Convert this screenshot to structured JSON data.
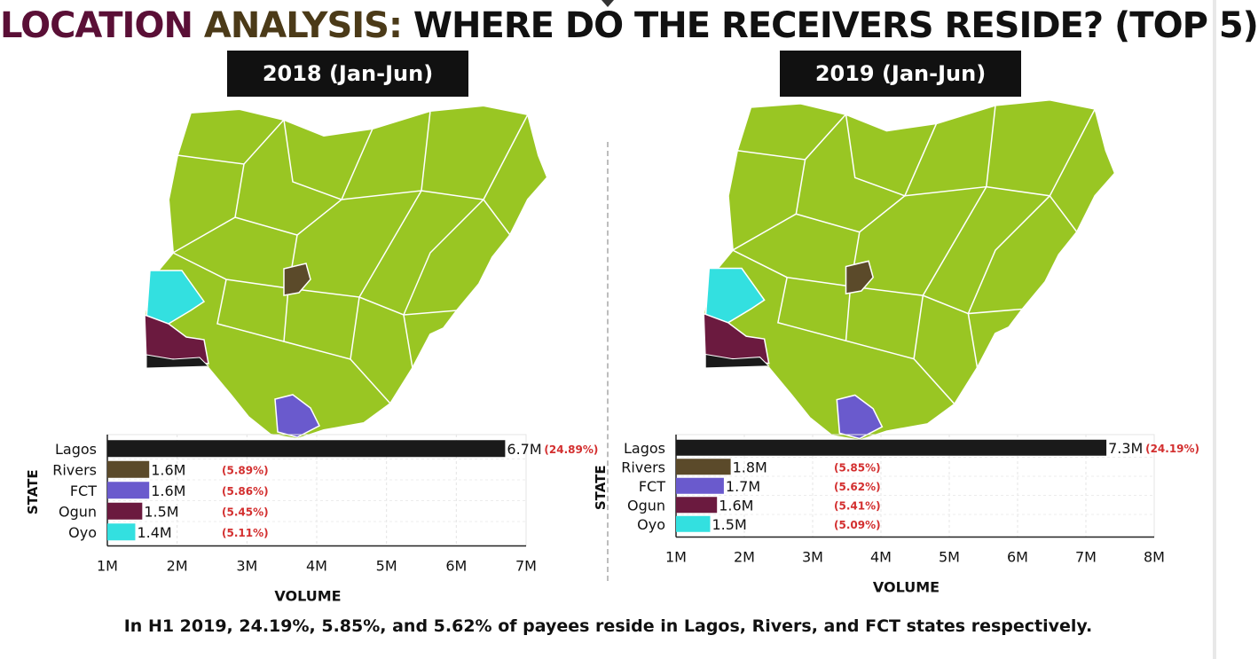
{
  "title": {
    "part1": "LOCATION",
    "part2": "ANALYSIS:",
    "part3": "WHERE DO THE RECEIVERS RESIDE? (TOP 5)"
  },
  "colors": {
    "title1": "#5a0f36",
    "title2": "#4b3a18",
    "map_base": "#99c623",
    "lagos": "#1a1a1a",
    "rivers": "#5b4a2a",
    "fct": "#6a5acd",
    "ogun": "#6b1a3f",
    "oyo": "#33e0e0"
  },
  "panels": [
    {
      "period": "2018 (Jan-Jun)"
    },
    {
      "period": "2019 (Jan-Jun)"
    }
  ],
  "footer": "In H1 2019, 24.19%, 5.85%, and 5.62% of payees reside in Lagos, Rivers, and FCT states respectively.",
  "chart_data": [
    {
      "type": "bar",
      "orientation": "horizontal",
      "title": "2018 (Jan-Jun)",
      "xlabel": "VOLUME",
      "ylabel": "STATE",
      "categories": [
        "Lagos",
        "Rivers",
        "FCT",
        "Ogun",
        "Oyo"
      ],
      "values": [
        6.7,
        1.6,
        1.6,
        1.5,
        1.4
      ],
      "value_labels": [
        "6.7M",
        "1.6M",
        "1.6M",
        "1.5M",
        "1.4M"
      ],
      "percent_labels": [
        "(24.89%)",
        "(5.89%)",
        "(5.86%)",
        "(5.45%)",
        "(5.11%)"
      ],
      "bar_colors": [
        "#1a1a1a",
        "#5b4a2a",
        "#6a5acd",
        "#6b1a3f",
        "#33e0e0"
      ],
      "xlim": [
        1,
        7
      ],
      "xticks": [
        "1M",
        "2M",
        "3M",
        "4M",
        "5M",
        "6M",
        "7M"
      ]
    },
    {
      "type": "bar",
      "orientation": "horizontal",
      "title": "2019 (Jan-Jun)",
      "xlabel": "VOLUME",
      "ylabel": "STATE",
      "categories": [
        "Lagos",
        "Rivers",
        "FCT",
        "Ogun",
        "Oyo"
      ],
      "values": [
        7.3,
        1.8,
        1.7,
        1.6,
        1.5
      ],
      "value_labels": [
        "7.3M",
        "1.8M",
        "1.7M",
        "1.6M",
        "1.5M"
      ],
      "percent_labels": [
        "(24.19%)",
        "(5.85%)",
        "(5.62%)",
        "(5.41%)",
        "(5.09%)"
      ],
      "bar_colors": [
        "#1a1a1a",
        "#5b4a2a",
        "#6a5acd",
        "#6b1a3f",
        "#33e0e0"
      ],
      "xlim": [
        1,
        8
      ],
      "xticks": [
        "1M",
        "2M",
        "3M",
        "4M",
        "5M",
        "6M",
        "7M",
        "8M"
      ]
    }
  ]
}
